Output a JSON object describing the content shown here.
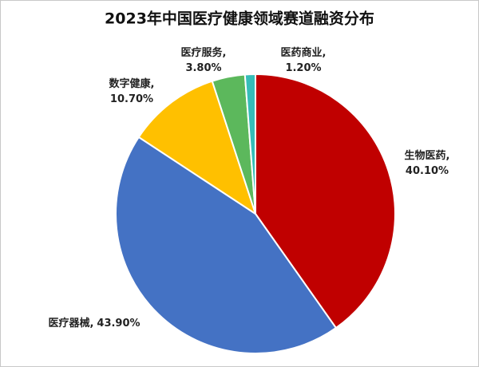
{
  "chart_data": {
    "type": "pie",
    "title": "2023年中国医疗健康领域赛道融资分布",
    "categories": [
      "生物医药",
      "医疗器械",
      "数字健康",
      "医疗服务",
      "医药商业"
    ],
    "values": [
      40.1,
      43.9,
      10.7,
      3.8,
      1.2
    ],
    "value_labels": [
      "40.10%",
      "43.90%",
      "10.70%",
      "3.80%",
      "1.20%"
    ],
    "label_separator": ",",
    "colors": [
      "#c00000",
      "#4472c4",
      "#ffc000",
      "#5cb85c",
      "#36bdb8"
    ]
  }
}
